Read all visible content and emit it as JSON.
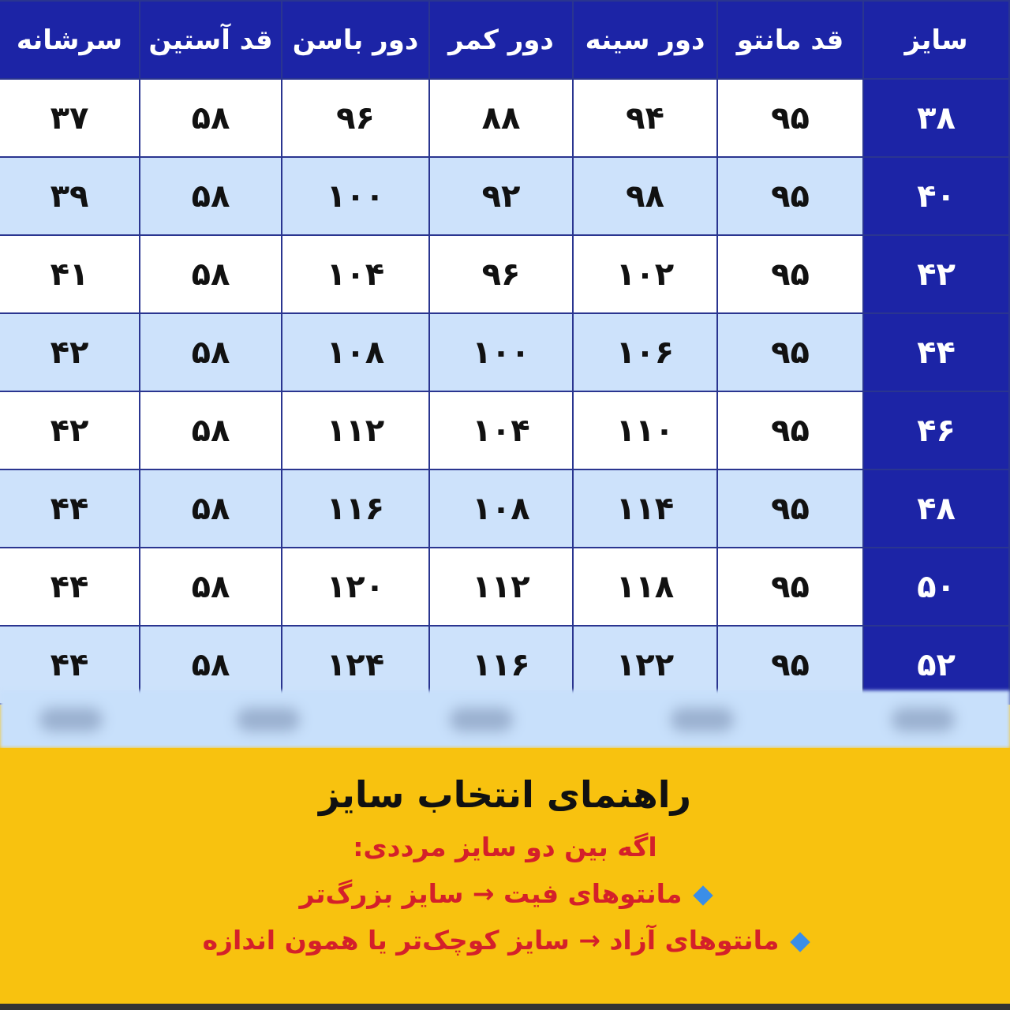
{
  "table": {
    "headers": [
      "سایز",
      "قد مانتو",
      "دور سینه",
      "دور کمر",
      "دور باسن",
      "قد آستین",
      "سرشانه"
    ],
    "rows": [
      [
        "۳۸",
        "۹۵",
        "۹۴",
        "۸۸",
        "۹۶",
        "۵۸",
        "۳۷"
      ],
      [
        "۴۰",
        "۹۵",
        "۹۸",
        "۹۲",
        "۱۰۰",
        "۵۸",
        "۳۹"
      ],
      [
        "۴۲",
        "۹۵",
        "۱۰۲",
        "۹۶",
        "۱۰۴",
        "۵۸",
        "۴۱"
      ],
      [
        "۴۴",
        "۹۵",
        "۱۰۶",
        "۱۰۰",
        "۱۰۸",
        "۵۸",
        "۴۲"
      ],
      [
        "۴۶",
        "۹۵",
        "۱۱۰",
        "۱۰۴",
        "۱۱۲",
        "۵۸",
        "۴۲"
      ],
      [
        "۴۸",
        "۹۵",
        "۱۱۴",
        "۱۰۸",
        "۱۱۶",
        "۵۸",
        "۴۴"
      ],
      [
        "۵۰",
        "۹۵",
        "۱۱۸",
        "۱۱۲",
        "۱۲۰",
        "۵۸",
        "۴۴"
      ],
      [
        "۵۲",
        "۹۵",
        "۱۲۲",
        "۱۱۶",
        "۱۲۴",
        "۵۸",
        "۴۴"
      ]
    ]
  },
  "guide": {
    "title": "راهنمای انتخاب سایز",
    "intro": "اگه بین دو سایز مرددی:",
    "tips": [
      {
        "icon": "blue-diamond-icon",
        "text": "مانتوهای فیت → سایز بزرگ‌تر"
      },
      {
        "icon": "blue-diamond-icon",
        "text": "مانتوهای آزاد → سایز کوچک‌تر یا همون اندازه"
      }
    ]
  },
  "colors": {
    "header": "#1c24a6",
    "row_alt": "#cde2fb",
    "guide_bg": "#f8c20f",
    "guide_text": "#d4202a"
  }
}
